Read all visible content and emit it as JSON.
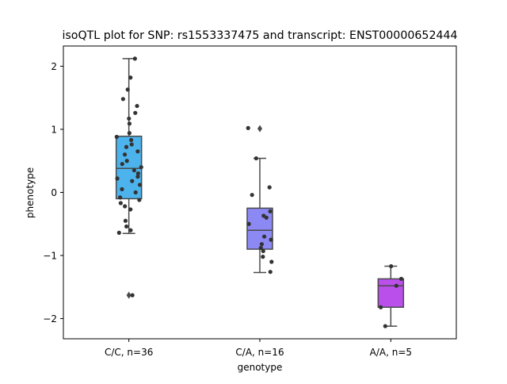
{
  "chart_data": {
    "type": "box",
    "title": "isoQTL plot for SNP: rs1553337475 and transcript: ENST00000652444",
    "xlabel": "genotype",
    "ylabel": "phenotype",
    "ylim": [
      -2.32,
      2.32
    ],
    "yticks": [
      -2,
      -1,
      0,
      1,
      2
    ],
    "ytick_labels": [
      "−2",
      "−1",
      "0",
      "1",
      "2"
    ],
    "categories": [
      "C/C, n=36",
      "C/A, n=16",
      "A/A, n=5"
    ],
    "boxes": [
      {
        "name": "C/C",
        "color": "#4cb3ec",
        "q1": -0.1,
        "median": 0.38,
        "q3": 0.89,
        "whisker_low": -0.65,
        "whisker_high": 2.12,
        "outliers": [
          -1.63
        ],
        "points": [
          2.12,
          1.82,
          1.63,
          1.48,
          1.37,
          1.26,
          1.17,
          1.09,
          0.94,
          0.88,
          0.83,
          0.76,
          0.72,
          0.65,
          0.6,
          0.5,
          0.45,
          0.4,
          0.35,
          0.3,
          0.25,
          0.22,
          0.18,
          0.12,
          0.05,
          0.0,
          -0.08,
          -0.12,
          -0.17,
          -0.22,
          -0.27,
          -0.45,
          -0.54,
          -0.6,
          -0.64,
          -1.63
        ]
      },
      {
        "name": "C/A",
        "color": "#8c89f5",
        "q1": -0.9,
        "median": -0.6,
        "q3": -0.25,
        "whisker_low": -1.27,
        "whisker_high": 0.54,
        "outliers": [
          1.01
        ],
        "points": [
          1.02,
          0.54,
          0.08,
          -0.04,
          -0.3,
          -0.37,
          -0.4,
          -0.5,
          -0.7,
          -0.75,
          -0.82,
          -0.88,
          -0.93,
          -1.02,
          -1.1,
          -1.26
        ]
      },
      {
        "name": "A/A",
        "color": "#bb4fec",
        "q1": -1.82,
        "median": -1.48,
        "q3": -1.37,
        "whisker_low": -2.12,
        "whisker_high": -1.17,
        "outliers": [],
        "points": [
          -1.17,
          -1.37,
          -1.48,
          -1.82,
          -2.12
        ]
      }
    ]
  }
}
